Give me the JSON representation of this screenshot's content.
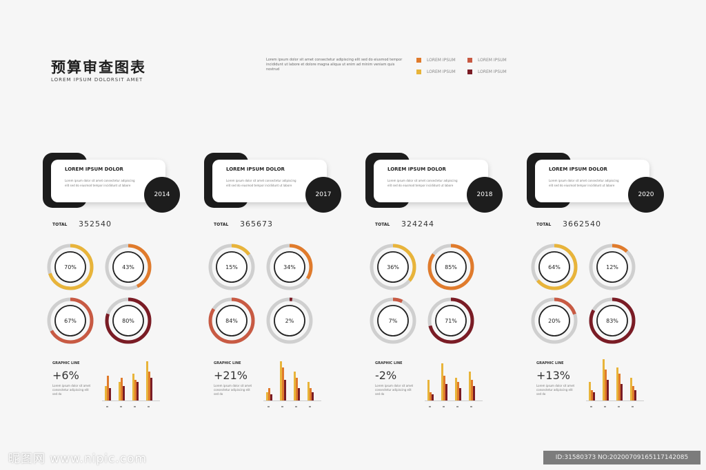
{
  "header": {
    "title": "预算审查图表",
    "subtitle": "LOREM IPSUM DOLORSIT AMET",
    "intro": "Lorem ipsum dolor sit amet consectetur adipiscing elit sed do eiusmod tempor incididunt ut labore et dolore magna aliqua ut enim ad minim veniam quis nostrud"
  },
  "legend": [
    {
      "label": "LOREM IPSUM",
      "color": "#e07b2c"
    },
    {
      "label": "LOREM IPSUM",
      "color": "#c85a43"
    },
    {
      "label": "LOREM IPSUM",
      "color": "#e8b43a"
    },
    {
      "label": "LOREM IPSUM",
      "color": "#7a1c25"
    }
  ],
  "card_title": "LOREM IPSUM DOLOR",
  "card_text": "Lorem ipsum dolor sit amet consectetur adipiscing elit sed do eiusmod tempor incididunt ut labore",
  "total_label": "TOTAL",
  "stats_label": "GRAPHIC LINE",
  "stats_text": "Lorem ipsum dolor sit amet consectetur adipiscing elit sed do",
  "donut_track_color": "#cfcfcf",
  "footer": {
    "watermark": "昵图网 www.nipic.com",
    "id": "ID:31580373 NO:20200709165117142085"
  },
  "chart_data": [
    {
      "type": "donut",
      "year": "2014",
      "total": "352540",
      "growth": "+6%",
      "donuts": [
        {
          "label": "70%",
          "value": 70,
          "color": "#e8b43a"
        },
        {
          "label": "43%",
          "value": 43,
          "color": "#e07b2c"
        },
        {
          "label": "67%",
          "value": 67,
          "color": "#c85a43"
        },
        {
          "label": "80%",
          "value": 80,
          "color": "#7a1c25"
        }
      ],
      "bar_groups": [
        [
          14,
          24,
          12
        ],
        [
          18,
          22,
          14
        ],
        [
          26,
          20,
          18
        ],
        [
          38,
          28,
          22
        ]
      ]
    },
    {
      "type": "donut",
      "year": "2017",
      "total": "365673",
      "growth": "+21%",
      "donuts": [
        {
          "label": "15%",
          "value": 15,
          "color": "#e8b43a"
        },
        {
          "label": "34%",
          "value": 34,
          "color": "#e07b2c"
        },
        {
          "label": "84%",
          "value": 84,
          "color": "#c85a43"
        },
        {
          "label": "2%",
          "value": 2,
          "color": "#7a1c25"
        }
      ],
      "bar_groups": [
        [
          8,
          12,
          6
        ],
        [
          38,
          32,
          20
        ],
        [
          28,
          22,
          12
        ],
        [
          18,
          12,
          8
        ]
      ]
    },
    {
      "type": "donut",
      "year": "2018",
      "total": "324244",
      "growth": "-2%",
      "donuts": [
        {
          "label": "36%",
          "value": 36,
          "color": "#e8b43a"
        },
        {
          "label": "85%",
          "value": 85,
          "color": "#e07b2c"
        },
        {
          "label": "7%",
          "value": 7,
          "color": "#c85a43"
        },
        {
          "label": "71%",
          "value": 71,
          "color": "#7a1c25"
        }
      ],
      "bar_groups": [
        [
          20,
          8,
          6
        ],
        [
          36,
          24,
          16
        ],
        [
          22,
          18,
          12
        ],
        [
          28,
          20,
          14
        ]
      ]
    },
    {
      "type": "donut",
      "year": "2020",
      "total": "3662540",
      "growth": "+13%",
      "donuts": [
        {
          "label": "64%",
          "value": 64,
          "color": "#e8b43a"
        },
        {
          "label": "12%",
          "value": 12,
          "color": "#e07b2c"
        },
        {
          "label": "20%",
          "value": 20,
          "color": "#c85a43"
        },
        {
          "label": "83%",
          "value": 83,
          "color": "#7a1c25"
        }
      ],
      "bar_groups": [
        [
          18,
          10,
          8
        ],
        [
          40,
          30,
          20
        ],
        [
          32,
          26,
          16
        ],
        [
          22,
          14,
          10
        ]
      ]
    }
  ]
}
